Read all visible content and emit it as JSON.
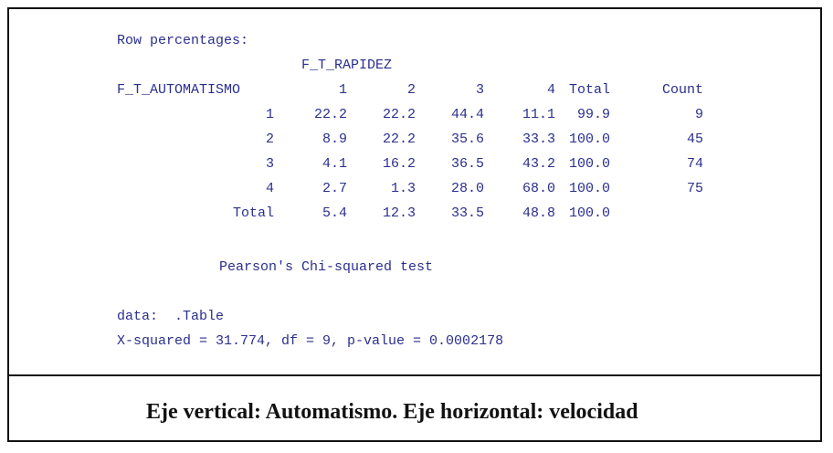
{
  "output": {
    "heading": "Row percentages:",
    "column_variable": "F_T_RAPIDEZ",
    "table": {
      "header": [
        "F_T_AUTOMATISMO",
        "1",
        "2",
        "3",
        "4",
        "Total",
        "Count"
      ],
      "rows": [
        [
          "1",
          "22.2",
          "22.2",
          "44.4",
          "11.1",
          "99.9",
          "9"
        ],
        [
          "2",
          "8.9",
          "22.2",
          "35.6",
          "33.3",
          "100.0",
          "45"
        ],
        [
          "3",
          "4.1",
          "16.2",
          "36.5",
          "43.2",
          "100.0",
          "74"
        ],
        [
          "4",
          "2.7",
          "1.3",
          "28.0",
          "68.0",
          "100.0",
          "75"
        ],
        [
          "Total",
          "5.4",
          "12.3",
          "33.5",
          "48.8",
          "100.0"
        ]
      ]
    },
    "test_title": "Pearson's Chi-squared test",
    "data_line": "data:  .Table",
    "result_line": "X-squared = 31.774, df = 9, p-value = 0.0002178"
  },
  "caption": "Eje vertical: Automatismo. Eje horizontal: velocidad"
}
